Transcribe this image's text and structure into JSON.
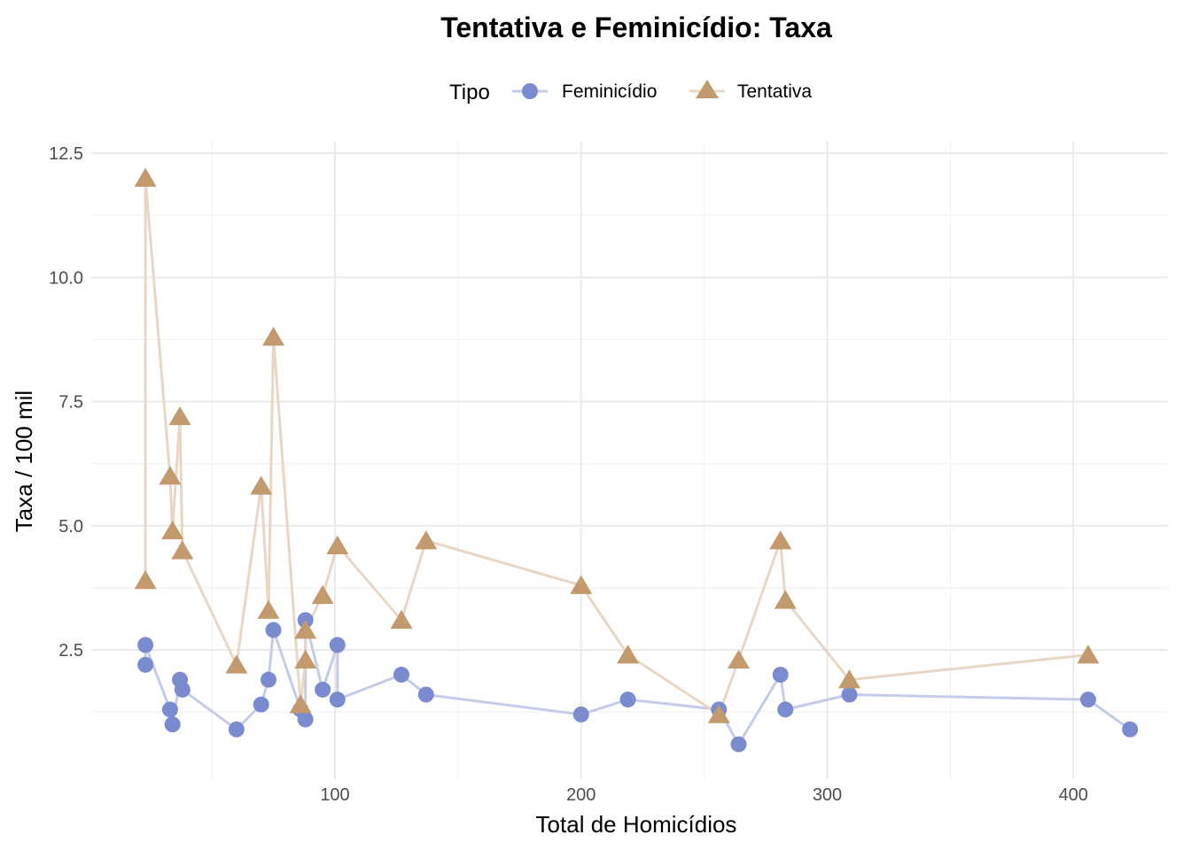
{
  "chart_data": {
    "type": "line",
    "title": "Tentativa e Feminicídio: Taxa",
    "xlabel": "Total de Homicídios",
    "ylabel": "Taxa / 100 mil",
    "xlim": [
      0,
      440
    ],
    "ylim": [
      0.5,
      12.5
    ],
    "x_ticks": [
      100,
      200,
      300,
      400
    ],
    "x_tick_labels": [
      "100",
      "200",
      "300",
      "400"
    ],
    "y_ticks": [
      2.5,
      5.0,
      7.5,
      10.0,
      12.5
    ],
    "y_tick_labels": [
      "2.5",
      "5.0",
      "7.5",
      "10.0",
      "12.5"
    ],
    "grid": true,
    "legend": {
      "title": "Tipo",
      "position": "top"
    },
    "series": [
      {
        "name": "Feminicídio",
        "marker": "circle",
        "color": "#7b8bd0",
        "line_color": "#c5cceb",
        "points": [
          [
            23,
            2.2
          ],
          [
            23,
            2.6
          ],
          [
            33,
            1.3
          ],
          [
            34,
            1.0
          ],
          [
            37,
            1.9
          ],
          [
            38,
            1.7
          ],
          [
            60,
            0.9
          ],
          [
            70,
            1.4
          ],
          [
            73,
            1.9
          ],
          [
            75,
            2.9
          ],
          [
            86,
            1.3
          ],
          [
            88,
            1.1
          ],
          [
            88,
            3.1
          ],
          [
            95,
            1.7
          ],
          [
            101,
            2.6
          ],
          [
            101,
            1.5
          ],
          [
            127,
            2.0
          ],
          [
            137,
            1.6
          ],
          [
            200,
            1.2
          ],
          [
            219,
            1.5
          ],
          [
            256,
            1.3
          ],
          [
            264,
            0.6
          ],
          [
            281,
            2.0
          ],
          [
            283,
            1.3
          ],
          [
            309,
            1.6
          ],
          [
            406,
            1.5
          ],
          [
            423,
            0.9
          ]
        ]
      },
      {
        "name": "Tentativa",
        "marker": "triangle",
        "color": "#c29a6d",
        "line_color": "#e8d7c5",
        "points": [
          [
            23,
            3.9
          ],
          [
            23,
            12.0
          ],
          [
            33,
            6.0
          ],
          [
            34,
            4.9
          ],
          [
            37,
            7.2
          ],
          [
            38,
            4.5
          ],
          [
            60,
            2.2
          ],
          [
            70,
            5.8
          ],
          [
            73,
            3.3
          ],
          [
            75,
            8.8
          ],
          [
            86,
            1.4
          ],
          [
            88,
            2.3
          ],
          [
            88,
            2.9
          ],
          [
            95,
            3.6
          ],
          [
            101,
            4.6
          ],
          [
            127,
            3.1
          ],
          [
            137,
            4.7
          ],
          [
            200,
            3.8
          ],
          [
            219,
            2.4
          ],
          [
            256,
            1.2
          ],
          [
            264,
            2.3
          ],
          [
            281,
            4.7
          ],
          [
            283,
            3.5
          ],
          [
            309,
            1.9
          ],
          [
            406,
            2.4
          ]
        ]
      }
    ]
  }
}
